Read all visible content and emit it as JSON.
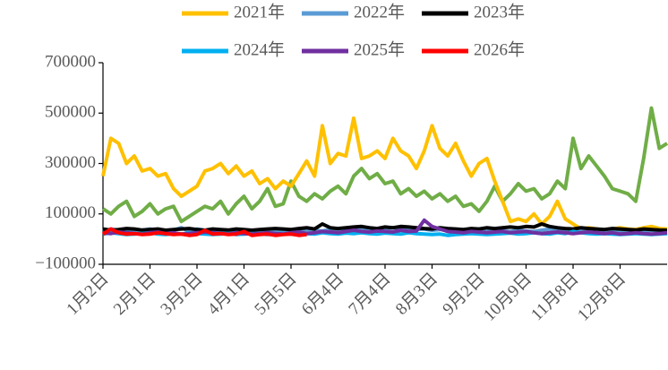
{
  "chart_data": {
    "type": "line",
    "categories": [
      "1月2日",
      null,
      null,
      null,
      null,
      null,
      "2月1日",
      null,
      null,
      null,
      null,
      null,
      "3月2日",
      null,
      null,
      null,
      null,
      null,
      "4月1日",
      null,
      null,
      null,
      null,
      null,
      "5月5日",
      null,
      null,
      null,
      null,
      null,
      "6月4日",
      null,
      null,
      null,
      null,
      null,
      "7月4日",
      null,
      null,
      null,
      null,
      null,
      "8月3日",
      null,
      null,
      null,
      null,
      null,
      "9月2日",
      null,
      null,
      null,
      null,
      null,
      "10月9日",
      null,
      null,
      null,
      null,
      null,
      "11月8日",
      null,
      null,
      null,
      null,
      null,
      "12月8日",
      null,
      null,
      null,
      null,
      null,
      null
    ],
    "series": [
      {
        "color": "#70ad47",
        "values": [
          120000,
          100000,
          130000,
          150000,
          90000,
          110000,
          140000,
          100000,
          120000,
          130000,
          70000,
          90000,
          110000,
          130000,
          120000,
          150000,
          100000,
          140000,
          170000,
          120000,
          150000,
          200000,
          130000,
          140000,
          230000,
          170000,
          150000,
          180000,
          160000,
          190000,
          210000,
          180000,
          250000,
          280000,
          240000,
          260000,
          220000,
          230000,
          180000,
          200000,
          170000,
          190000,
          160000,
          180000,
          150000,
          170000,
          130000,
          140000,
          110000,
          150000,
          210000,
          150000,
          180000,
          220000,
          190000,
          200000,
          160000,
          180000,
          230000,
          200000,
          400000,
          280000,
          330000,
          290000,
          250000,
          200000,
          190000,
          180000,
          150000,
          320000,
          520000,
          360000,
          380000
        ]
      },
      {
        "name": "2021年",
        "color": "#ffc000",
        "values": [
          250000,
          400000,
          380000,
          300000,
          330000,
          270000,
          280000,
          250000,
          260000,
          200000,
          170000,
          190000,
          210000,
          270000,
          280000,
          300000,
          260000,
          290000,
          250000,
          270000,
          220000,
          240000,
          200000,
          230000,
          210000,
          260000,
          310000,
          250000,
          450000,
          300000,
          340000,
          330000,
          480000,
          320000,
          330000,
          350000,
          320000,
          400000,
          350000,
          330000,
          280000,
          350000,
          450000,
          360000,
          330000,
          380000,
          310000,
          250000,
          300000,
          320000,
          230000,
          150000,
          70000,
          80000,
          70000,
          100000,
          60000,
          90000,
          150000,
          80000,
          60000,
          40000,
          45000,
          40000,
          35000,
          40000,
          45000,
          40000,
          38000,
          45000,
          50000,
          42000,
          40000
        ]
      },
      {
        "name": "2022年",
        "color": "#5b9bd5",
        "values": [
          30000,
          40000,
          35000,
          30000,
          28000,
          35000,
          40000,
          32000,
          30000,
          36000,
          45000,
          30000,
          40000,
          35000,
          30000,
          32000,
          28000,
          30000,
          35000,
          30000,
          32000,
          28000,
          30000,
          35000,
          32000,
          40000,
          30000,
          35000,
          32000,
          38000,
          35000,
          40000,
          35000,
          38000,
          42000,
          40000,
          38000,
          45000,
          40000,
          42000,
          38000,
          40000,
          35000,
          38000,
          40000,
          35000,
          32000,
          38000,
          35000,
          30000,
          35000,
          32000,
          30000,
          35000,
          32000,
          30000,
          35000,
          40000,
          35000,
          32000,
          30000,
          35000,
          32000,
          30000,
          35000,
          32000,
          30000,
          35000,
          32000,
          30000,
          35000,
          32000,
          30000
        ]
      },
      {
        "name": "2023年",
        "color": "#000000",
        "values": [
          40000,
          35000,
          38000,
          42000,
          40000,
          36000,
          38000,
          40000,
          35000,
          38000,
          40000,
          42000,
          38000,
          35000,
          40000,
          38000,
          36000,
          40000,
          38000,
          35000,
          38000,
          40000,
          42000,
          40000,
          38000,
          42000,
          45000,
          40000,
          60000,
          45000,
          42000,
          45000,
          48000,
          50000,
          45000,
          42000,
          48000,
          45000,
          50000,
          48000,
          45000,
          42000,
          40000,
          45000,
          42000,
          40000,
          38000,
          42000,
          40000,
          45000,
          42000,
          45000,
          48000,
          45000,
          50000,
          48000,
          60000,
          50000,
          45000,
          42000,
          40000,
          45000,
          42000,
          40000,
          38000,
          42000,
          40000,
          38000,
          36000,
          40000,
          38000,
          36000,
          35000
        ]
      },
      {
        "name": "2024年",
        "color": "#00b0f0",
        "values": [
          20000,
          25000,
          22000,
          18000,
          20000,
          22000,
          25000,
          20000,
          18000,
          22000,
          20000,
          24000,
          22000,
          20000,
          18000,
          20000,
          22000,
          18000,
          20000,
          22000,
          20000,
          18000,
          20000,
          22000,
          20000,
          18000,
          22000,
          20000,
          25000,
          22000,
          20000,
          24000,
          22000,
          25000,
          22000,
          20000,
          24000,
          22000,
          20000,
          25000,
          22000,
          20000,
          18000,
          20000,
          15000,
          18000,
          20000,
          22000,
          20000,
          18000,
          20000,
          22000,
          24000,
          20000,
          22000,
          25000,
          22000,
          20000,
          25000,
          22000,
          30000,
          25000,
          22000,
          20000,
          22000,
          20000,
          18000,
          20000,
          22000,
          20000,
          18000,
          20000,
          22000
        ]
      },
      {
        "name": "2025年",
        "color": "#7030a0",
        "values": [
          25000,
          22000,
          28000,
          25000,
          22000,
          20000,
          25000,
          28000,
          22000,
          25000,
          20000,
          22000,
          25000,
          28000,
          25000,
          22000,
          20000,
          25000,
          22000,
          20000,
          22000,
          25000,
          22000,
          20000,
          25000,
          28000,
          22000,
          25000,
          30000,
          28000,
          25000,
          30000,
          35000,
          30000,
          28000,
          32000,
          30000,
          28000,
          35000,
          30000,
          32000,
          75000,
          50000,
          40000,
          30000,
          28000,
          25000,
          30000,
          28000,
          25000,
          28000,
          30000,
          25000,
          28000,
          30000,
          25000,
          22000,
          25000,
          28000,
          25000,
          22000,
          25000,
          28000,
          25000,
          22000,
          25000,
          20000,
          22000,
          25000,
          22000,
          20000,
          22000,
          25000
        ]
      },
      {
        "name": "2026年",
        "color": "#ff0000",
        "values": [
          20000,
          40000,
          25000,
          20000,
          22000,
          18000,
          20000,
          25000,
          22000,
          18000,
          20000,
          15000,
          18000,
          35000,
          20000,
          22000,
          18000,
          20000,
          30000,
          15000,
          18000,
          20000,
          15000,
          18000,
          20000,
          15000,
          18000,
          null,
          null,
          null,
          null,
          null,
          null,
          null,
          null,
          null,
          null,
          null,
          null,
          null,
          null,
          null,
          null,
          null,
          null,
          null,
          null,
          null,
          null,
          null,
          null,
          null,
          null,
          null,
          null,
          null,
          null,
          null,
          null,
          null,
          null,
          null,
          null,
          null,
          null,
          null,
          null,
          null,
          null,
          null,
          null,
          null,
          null
        ]
      }
    ],
    "ylim": [
      -100000,
      700000
    ],
    "yticks": [
      {
        "value": -100000,
        "label": "−100000"
      },
      100000,
      300000,
      500000,
      700000
    ]
  }
}
